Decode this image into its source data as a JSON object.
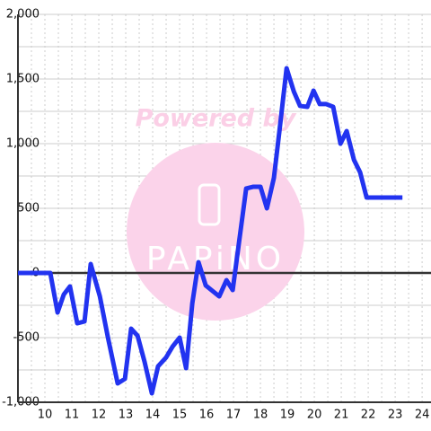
{
  "chart_data": {
    "type": "line",
    "watermark": "Powered by",
    "watermark_logo": "PAPiNO",
    "xlim": [
      9,
      24.33
    ],
    "xticks": [
      10,
      11,
      12,
      13,
      14,
      15,
      16,
      17,
      18,
      19,
      20,
      21,
      22,
      23,
      24
    ],
    "x_minor_gridlines": [
      9.5,
      10.5,
      11.5,
      12.5,
      13.5,
      14.5,
      15.5,
      16.5,
      17.5,
      18.5,
      19.5,
      20.5,
      21.5,
      22.5,
      23.5
    ],
    "ylim": [
      -1000,
      2000
    ],
    "yticks": [
      {
        "value": -1000,
        "label": "-1,000"
      },
      -500,
      0,
      500,
      {
        "value": 1000,
        "label": "1,000"
      },
      {
        "value": 1500,
        "label": "1,500"
      },
      {
        "value": 2000,
        "label": "2,000"
      }
    ],
    "y_minor_gridlines": [
      -750,
      -250,
      250,
      750,
      1250,
      1750
    ],
    "grid": true,
    "series": [
      {
        "color": "#2233f0",
        "x": [
          9,
          10.2,
          10.47,
          10.7,
          10.93,
          11.2,
          11.47,
          11.7,
          12.04,
          12.34,
          12.7,
          12.97,
          13.2,
          13.44,
          13.7,
          13.97,
          14.2,
          14.5,
          14.74,
          15,
          15.24,
          15.47,
          15.7,
          15.97,
          16.47,
          16.74,
          16.97,
          17.24,
          17.47,
          17.74,
          18,
          18.24,
          18.5,
          18.7,
          18.97,
          19.24,
          19.47,
          19.74,
          19.97,
          20.2,
          20.44,
          20.7,
          20.97,
          21.2,
          21.47,
          21.7,
          21.94,
          23.27
        ],
        "values": [
          0,
          0,
          -306,
          -167,
          -104,
          -389,
          -375,
          69,
          -181,
          -500,
          -854,
          -819,
          -431,
          -486,
          -688,
          -931,
          -722,
          -653,
          -569,
          -500,
          -736,
          -236,
          83,
          -97,
          -181,
          -56,
          -132,
          292,
          653,
          667,
          667,
          500,
          736,
          1090,
          1583,
          1403,
          1292,
          1285,
          1410,
          1306,
          1306,
          1285,
          1000,
          1097,
          875,
          778,
          583,
          583
        ]
      }
    ]
  }
}
